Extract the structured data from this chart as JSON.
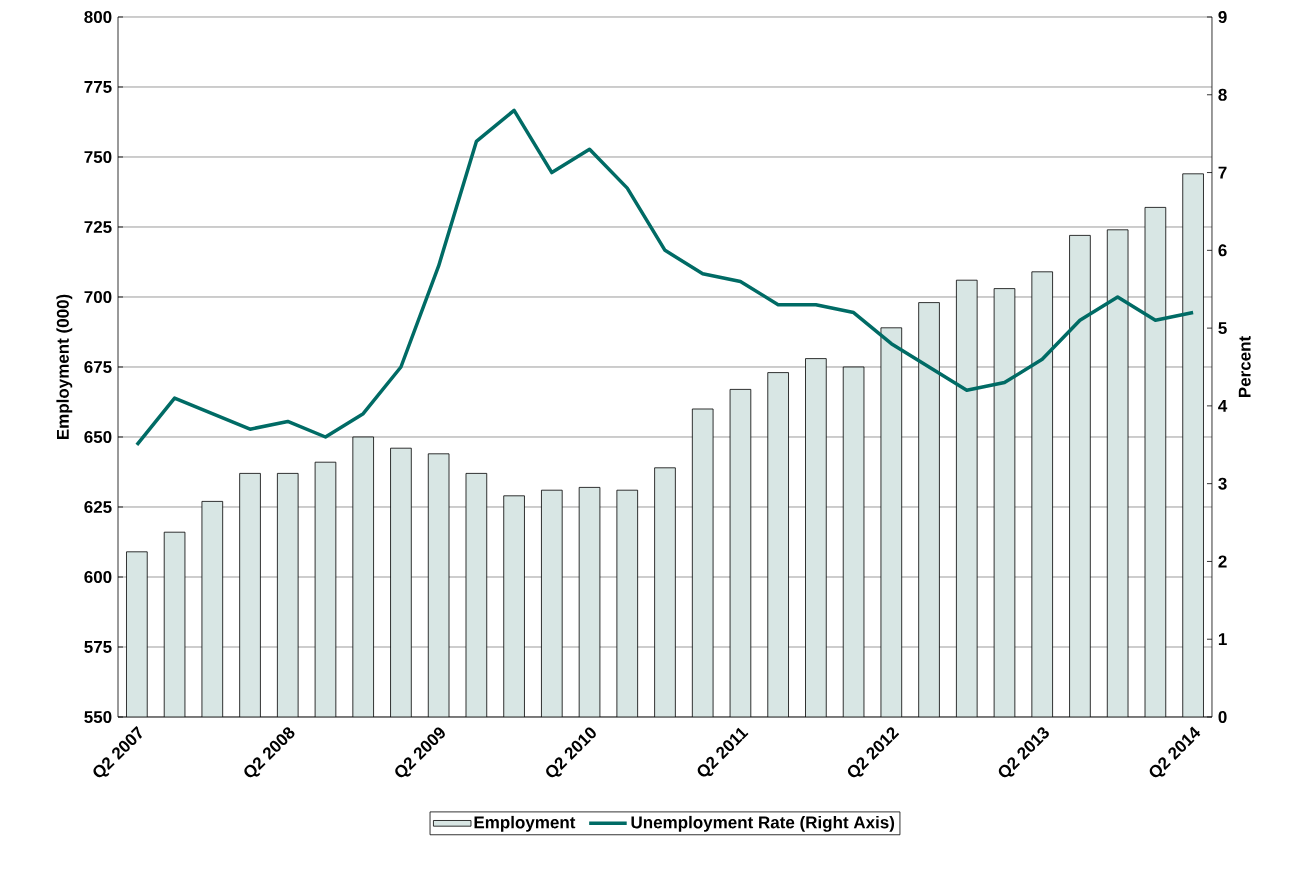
{
  "chart_data": {
    "type": "bar",
    "xlabel": null,
    "ylabel": "Employment (000)",
    "y2label": "Percent",
    "categories": [
      "Q2 2007",
      null,
      null,
      null,
      "Q2 2008",
      null,
      null,
      null,
      "Q2 2009",
      null,
      null,
      null,
      "Q2 2010",
      null,
      null,
      null,
      "Q2 2011",
      null,
      null,
      null,
      "Q2 2012",
      null,
      null,
      null,
      "Q2 2013",
      null,
      null,
      null,
      "Q2 2014"
    ],
    "series": [
      {
        "name": "Employment",
        "color": "#d8e6e4",
        "values": [
          609,
          616,
          627,
          637,
          637,
          641,
          650,
          646,
          644,
          637,
          629,
          631,
          632,
          631,
          639,
          660,
          667,
          673,
          678,
          675,
          689,
          698,
          706,
          703,
          709,
          722,
          724,
          732,
          744
        ]
      },
      {
        "name": "Unemployment Rate (Right Axis)",
        "type": "line",
        "axis": "y2",
        "color": "#006b65",
        "values": [
          3.5,
          4.1,
          3.9,
          3.7,
          3.8,
          3.6,
          3.9,
          4.5,
          5.8,
          7.4,
          7.8,
          7.0,
          7.3,
          6.8,
          6.0,
          5.7,
          5.6,
          5.3,
          5.3,
          5.2,
          4.8,
          4.5,
          4.2,
          4.3,
          4.6,
          5.1,
          5.4,
          5.1,
          5.2
        ]
      }
    ],
    "ylim": [
      550,
      800
    ],
    "yticks": [
      550,
      575,
      600,
      625,
      650,
      675,
      700,
      725,
      750,
      775,
      800
    ],
    "y2lim": [
      0,
      9
    ],
    "y2ticks": [
      0,
      1,
      2,
      3,
      4,
      5,
      6,
      7,
      8,
      9
    ],
    "grid": "y",
    "legend": "bottom",
    "marker": "none",
    "line_style": "solid"
  }
}
